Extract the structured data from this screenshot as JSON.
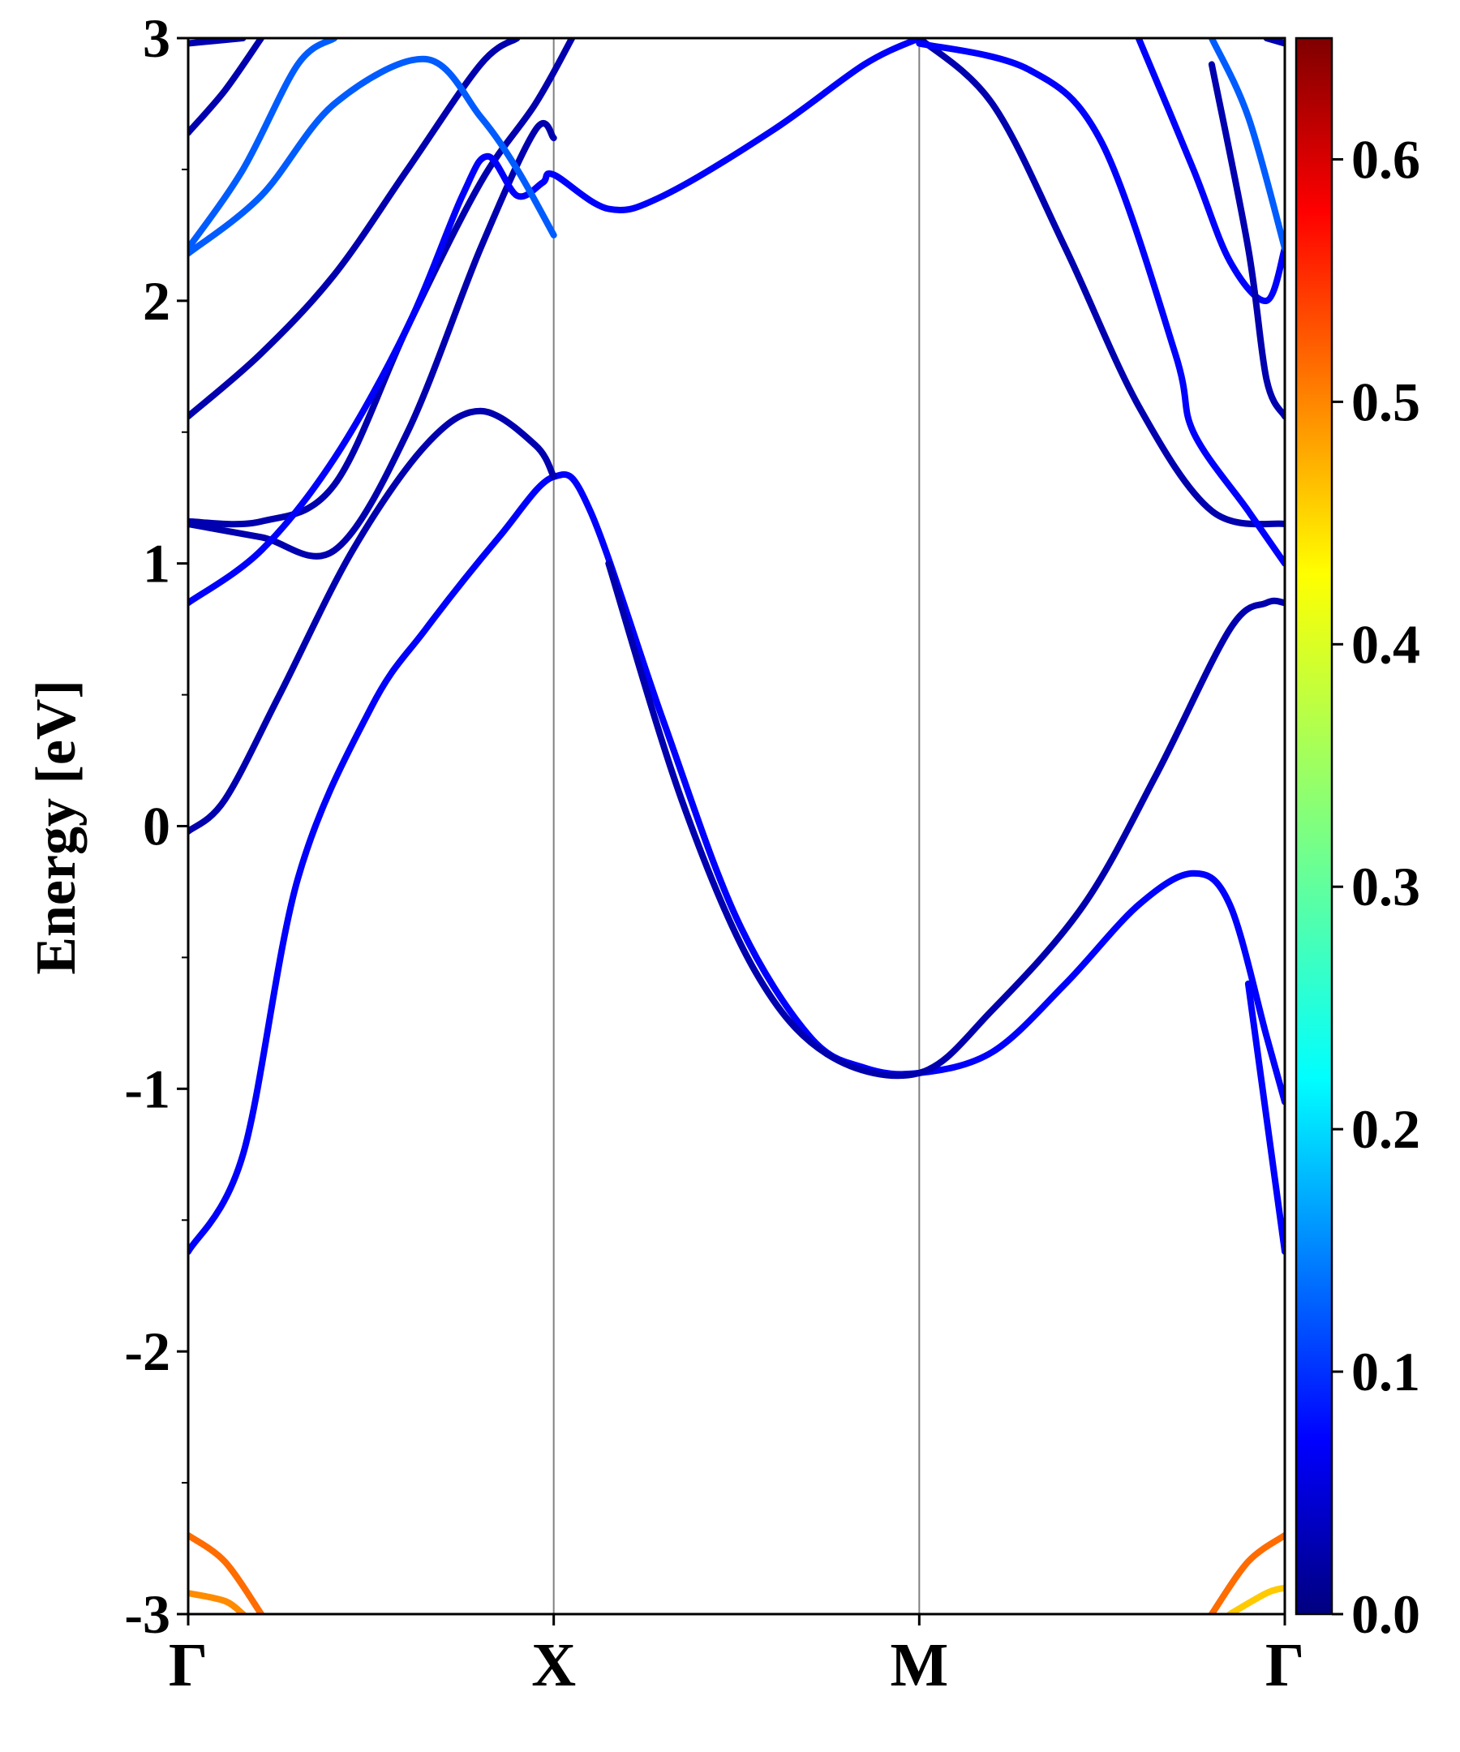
{
  "chart_data": {
    "type": "line",
    "title": "",
    "xlabel": "",
    "ylabel": "Energy [eV]",
    "ylim": [
      -3,
      3
    ],
    "xlim": [
      0,
      3
    ],
    "x_ticks": [
      {
        "pos": 0,
        "label": "Γ"
      },
      {
        "pos": 1,
        "label": "X"
      },
      {
        "pos": 2,
        "label": "M"
      },
      {
        "pos": 3,
        "label": "Γ"
      }
    ],
    "y_ticks": [
      -3,
      -2,
      -1,
      0,
      1,
      2,
      3
    ],
    "y_tick_labels": [
      "-3",
      "-2",
      "-1",
      "0",
      "1",
      "2",
      "3"
    ],
    "grid": false,
    "colorbar": {
      "colormap": "jet",
      "range": [
        0,
        0.65
      ],
      "ticks": [
        0.0,
        0.1,
        0.2,
        0.3,
        0.4,
        0.5,
        0.6
      ],
      "tick_labels": [
        "0.0",
        "0.1",
        "0.2",
        "0.3",
        "0.4",
        "0.5",
        "0.6"
      ]
    },
    "series": [
      {
        "weight": 0.08,
        "points": [
          [
            0,
            -1.62
          ],
          [
            0.15,
            -1.25
          ],
          [
            0.3,
            -0.2
          ],
          [
            0.5,
            0.45
          ],
          [
            0.65,
            0.75
          ],
          [
            0.85,
            1.1
          ],
          [
            1.0,
            1.33
          ],
          [
            1.1,
            1.2
          ],
          [
            1.3,
            0.4
          ],
          [
            1.5,
            -0.35
          ],
          [
            1.7,
            -0.8
          ],
          [
            1.85,
            -0.92
          ],
          [
            2.0,
            -0.94
          ],
          [
            2.2,
            -0.86
          ],
          [
            2.4,
            -0.6
          ],
          [
            2.6,
            -0.3
          ],
          [
            2.75,
            -0.18
          ],
          [
            2.85,
            -0.3
          ],
          [
            2.95,
            -0.8
          ],
          [
            3.0,
            -1.05
          ]
        ]
      },
      {
        "weight": 0.08,
        "points": [
          [
            2.9,
            -0.6
          ],
          [
            3.0,
            -1.62
          ]
        ]
      },
      {
        "weight": 0.03,
        "points": [
          [
            0,
            -0.02
          ],
          [
            0.1,
            0.1
          ],
          [
            0.25,
            0.5
          ],
          [
            0.45,
            1.05
          ],
          [
            0.65,
            1.45
          ],
          [
            0.8,
            1.58
          ],
          [
            0.95,
            1.45
          ],
          [
            1.0,
            1.33
          ]
        ]
      },
      {
        "weight": 0.03,
        "points": [
          [
            1.15,
            1.0
          ],
          [
            1.35,
            0.1
          ],
          [
            1.55,
            -0.55
          ],
          [
            1.75,
            -0.87
          ],
          [
            2.0,
            -0.94
          ],
          [
            2.2,
            -0.7
          ],
          [
            2.45,
            -0.3
          ],
          [
            2.65,
            0.2
          ],
          [
            2.85,
            0.75
          ],
          [
            2.95,
            0.85
          ],
          [
            3.0,
            0.85
          ]
        ]
      },
      {
        "weight": 0.03,
        "points": [
          [
            0,
            1.15
          ],
          [
            0.2,
            1.1
          ],
          [
            0.4,
            1.05
          ],
          [
            0.6,
            1.5
          ],
          [
            0.8,
            2.2
          ],
          [
            0.95,
            2.65
          ],
          [
            1.0,
            2.62
          ]
        ]
      },
      {
        "weight": 0.03,
        "points": [
          [
            0,
            1.16
          ],
          [
            0.2,
            1.16
          ],
          [
            0.4,
            1.3
          ],
          [
            0.6,
            1.9
          ],
          [
            0.8,
            2.45
          ],
          [
            0.95,
            2.75
          ],
          [
            1.05,
            3.0
          ]
        ]
      },
      {
        "weight": 0.08,
        "points": [
          [
            0,
            0.85
          ],
          [
            0.2,
            1.05
          ],
          [
            0.4,
            1.4
          ],
          [
            0.6,
            1.9
          ],
          [
            0.75,
            2.4
          ],
          [
            0.82,
            2.55
          ],
          [
            0.9,
            2.4
          ],
          [
            0.97,
            2.45
          ],
          [
            1.0,
            2.48
          ],
          [
            1.15,
            2.35
          ],
          [
            1.3,
            2.4
          ],
          [
            1.6,
            2.65
          ],
          [
            1.85,
            2.9
          ],
          [
            2.0,
            3.0
          ]
        ]
      },
      {
        "weight": 0.03,
        "points": [
          [
            0,
            1.56
          ],
          [
            0.2,
            1.8
          ],
          [
            0.4,
            2.1
          ],
          [
            0.6,
            2.5
          ],
          [
            0.8,
            2.9
          ],
          [
            0.9,
            3.0
          ]
        ]
      },
      {
        "weight": 0.03,
        "points": [
          [
            0,
            2.64
          ],
          [
            0.1,
            2.8
          ],
          [
            0.2,
            3.0
          ]
        ]
      },
      {
        "weight": 0.03,
        "points": [
          [
            0,
            2.98
          ],
          [
            0.15,
            3.0
          ]
        ]
      },
      {
        "weight": 0.14,
        "points": [
          [
            0,
            2.18
          ],
          [
            0.2,
            2.4
          ],
          [
            0.4,
            2.75
          ],
          [
            0.65,
            2.92
          ],
          [
            0.8,
            2.7
          ],
          [
            0.9,
            2.5
          ],
          [
            1.0,
            2.25
          ]
        ]
      },
      {
        "weight": 0.14,
        "points": [
          [
            0,
            2.2
          ],
          [
            0.15,
            2.5
          ],
          [
            0.3,
            2.9
          ],
          [
            0.4,
            3.0
          ]
        ]
      },
      {
        "weight": 0.03,
        "points": [
          [
            2.0,
            3.0
          ],
          [
            2.2,
            2.75
          ],
          [
            2.4,
            2.2
          ],
          [
            2.6,
            1.6
          ],
          [
            2.8,
            1.2
          ],
          [
            3.0,
            1.15
          ]
        ]
      },
      {
        "weight": 0.08,
        "points": [
          [
            2.0,
            2.98
          ],
          [
            2.3,
            2.88
          ],
          [
            2.5,
            2.6
          ],
          [
            2.7,
            1.8
          ],
          [
            2.75,
            1.5
          ],
          [
            2.9,
            1.2
          ],
          [
            3.0,
            1.0
          ]
        ]
      },
      {
        "weight": 0.08,
        "points": [
          [
            2.6,
            3.0
          ],
          [
            2.75,
            2.5
          ],
          [
            2.85,
            2.15
          ],
          [
            2.95,
            2.0
          ],
          [
            3.0,
            2.2
          ]
        ]
      },
      {
        "weight": 0.14,
        "points": [
          [
            2.8,
            3.0
          ],
          [
            2.9,
            2.7
          ],
          [
            3.0,
            2.2
          ]
        ]
      },
      {
        "weight": 0.03,
        "points": [
          [
            2.8,
            2.9
          ],
          [
            2.9,
            2.2
          ],
          [
            2.95,
            1.7
          ],
          [
            3.0,
            1.56
          ]
        ]
      },
      {
        "weight": 0.03,
        "points": [
          [
            2.95,
            3.0
          ],
          [
            3.0,
            2.98
          ]
        ]
      },
      {
        "weight": 0.5,
        "points": [
          [
            0,
            -2.7
          ],
          [
            0.1,
            -2.8
          ],
          [
            0.2,
            -3.0
          ]
        ]
      },
      {
        "weight": 0.48,
        "points": [
          [
            0,
            -2.92
          ],
          [
            0.1,
            -2.95
          ],
          [
            0.15,
            -3.0
          ]
        ]
      },
      {
        "weight": 0.5,
        "points": [
          [
            2.8,
            -3.0
          ],
          [
            2.9,
            -2.8
          ],
          [
            3.0,
            -2.7
          ]
        ]
      },
      {
        "weight": 0.44,
        "points": [
          [
            2.85,
            -3.0
          ],
          [
            2.95,
            -2.92
          ],
          [
            3.0,
            -2.9
          ]
        ]
      }
    ]
  }
}
